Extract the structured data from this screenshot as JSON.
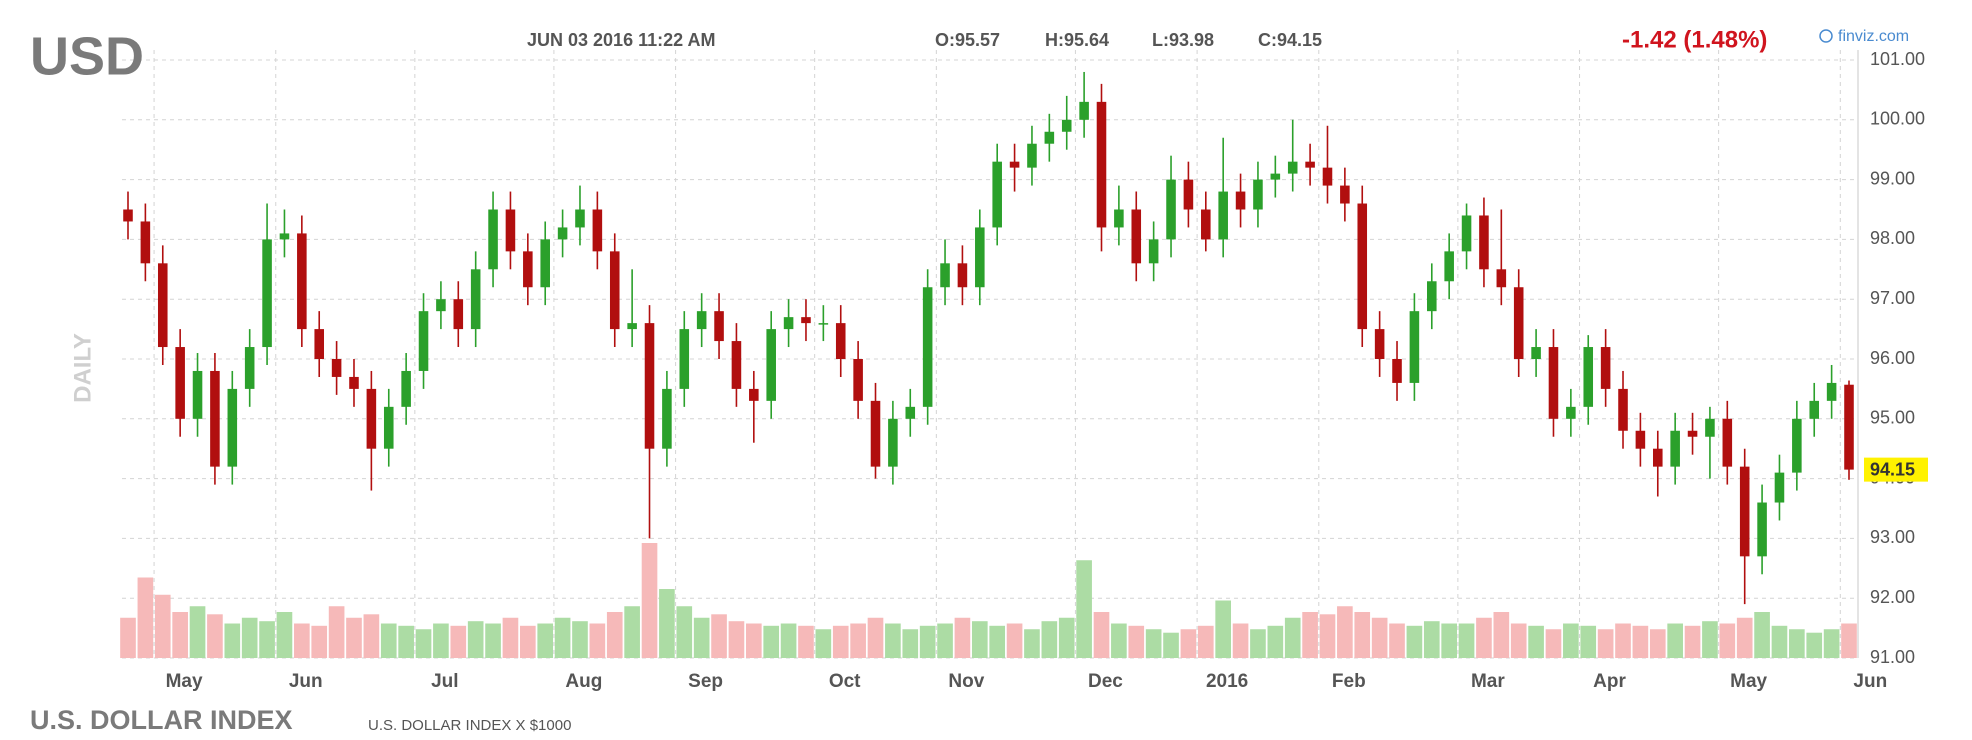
{
  "chart_data": {
    "type": "candlestick",
    "symbol": "USD",
    "timestamp": "JUN 03 2016 11:22 AM",
    "quote_open": "O:95.57",
    "quote_high": "H:95.64",
    "quote_low": "L:93.98",
    "quote_close": "C:94.15",
    "change": "-1.42 (1.48%)",
    "source": "finviz.com",
    "period_label": "DAILY",
    "title": "U.S. DOLLAR INDEX",
    "subtitle": "U.S. DOLLAR INDEX X $1000",
    "last_price": 94.15,
    "up_color": "#2ba02b",
    "down_color": "#b10f0f",
    "volume_up_color": "#acdca4",
    "volume_down_color": "#f6b9b9",
    "grid": true,
    "ylim": [
      91,
      101
    ],
    "yticks": [
      {
        "value": 91,
        "label": "91.00"
      },
      {
        "value": 92,
        "label": "92.00"
      },
      {
        "value": 93,
        "label": "93.00"
      },
      {
        "value": 94,
        "label": "94.00"
      },
      {
        "value": 95,
        "label": "95.00"
      },
      {
        "value": 96,
        "label": "96.00"
      },
      {
        "value": 97,
        "label": "97.00"
      },
      {
        "value": 98,
        "label": "98.00"
      },
      {
        "value": 99,
        "label": "99.00"
      },
      {
        "value": 100,
        "label": "100.00"
      },
      {
        "value": 101,
        "label": "101.00"
      }
    ],
    "categories": [
      null,
      null,
      "May",
      null,
      null,
      null,
      null,
      null,
      null,
      "Jun",
      null,
      null,
      null,
      null,
      null,
      null,
      null,
      "Jul",
      null,
      null,
      null,
      null,
      null,
      null,
      null,
      "Aug",
      null,
      null,
      null,
      null,
      null,
      null,
      "Sep",
      null,
      null,
      null,
      null,
      null,
      null,
      null,
      "Oct",
      null,
      null,
      null,
      null,
      null,
      null,
      "Nov",
      null,
      null,
      null,
      null,
      null,
      null,
      null,
      "Dec",
      null,
      null,
      null,
      null,
      null,
      null,
      "2016",
      null,
      null,
      null,
      null,
      null,
      null,
      "Feb",
      null,
      null,
      null,
      null,
      null,
      null,
      null,
      "Mar",
      null,
      null,
      null,
      null,
      null,
      null,
      "Apr",
      null,
      null,
      null,
      null,
      null,
      null,
      null,
      "May",
      null,
      null,
      null,
      null,
      null,
      null,
      "Jun"
    ],
    "open": [
      98.5,
      98.3,
      97.6,
      96.2,
      95.0,
      95.8,
      94.2,
      95.5,
      96.2,
      98.0,
      98.1,
      96.5,
      96.0,
      95.7,
      95.5,
      94.5,
      95.2,
      95.8,
      96.8,
      97.0,
      96.5,
      97.5,
      98.5,
      97.8,
      97.2,
      98.0,
      98.2,
      98.5,
      97.8,
      96.5,
      96.6,
      94.5,
      95.5,
      96.5,
      96.8,
      96.3,
      95.5,
      95.3,
      96.5,
      96.7,
      96.6,
      96.6,
      96.0,
      95.3,
      94.2,
      95.0,
      95.2,
      97.2,
      97.6,
      97.2,
      98.2,
      99.3,
      99.2,
      99.6,
      99.8,
      100.0,
      100.3,
      98.2,
      98.5,
      97.6,
      98.0,
      99.0,
      98.5,
      98.0,
      98.8,
      98.5,
      99.0,
      99.1,
      99.3,
      99.2,
      98.9,
      98.6,
      96.5,
      96.0,
      95.6,
      96.8,
      97.3,
      97.8,
      98.4,
      97.5,
      97.2,
      96.0,
      96.2,
      95.0,
      95.2,
      96.2,
      95.5,
      94.8,
      94.5,
      94.2,
      94.8,
      94.7,
      95.0,
      94.2,
      92.7,
      93.6,
      94.1,
      95.0,
      95.3,
      95.57
    ],
    "high": [
      98.8,
      98.6,
      97.9,
      96.5,
      96.1,
      96.1,
      95.8,
      96.5,
      98.6,
      98.5,
      98.4,
      96.8,
      96.3,
      96.0,
      95.8,
      95.5,
      96.1,
      97.1,
      97.3,
      97.3,
      97.8,
      98.8,
      98.8,
      98.1,
      98.3,
      98.5,
      98.9,
      98.8,
      98.1,
      97.5,
      96.9,
      95.8,
      96.8,
      97.1,
      97.1,
      96.6,
      95.8,
      96.8,
      97.0,
      97.0,
      96.9,
      96.9,
      96.3,
      95.6,
      95.3,
      95.5,
      97.5,
      98.0,
      97.9,
      98.5,
      99.6,
      99.6,
      99.9,
      100.1,
      100.4,
      100.8,
      100.6,
      98.9,
      98.8,
      98.3,
      99.4,
      99.3,
      98.8,
      99.7,
      99.1,
      99.3,
      99.4,
      100.0,
      99.6,
      99.9,
      99.2,
      98.9,
      96.8,
      96.3,
      97.1,
      97.6,
      98.1,
      98.6,
      98.7,
      98.5,
      97.5,
      96.5,
      96.5,
      95.5,
      96.4,
      96.5,
      95.8,
      95.1,
      94.8,
      95.1,
      95.1,
      95.2,
      95.3,
      94.5,
      93.9,
      94.4,
      95.3,
      95.6,
      95.9,
      95.64
    ],
    "low": [
      98.0,
      97.3,
      95.9,
      94.7,
      94.7,
      93.9,
      93.9,
      95.2,
      95.9,
      97.7,
      96.2,
      95.7,
      95.4,
      95.2,
      93.8,
      94.2,
      94.9,
      95.5,
      96.5,
      96.2,
      96.2,
      97.2,
      97.5,
      96.9,
      96.9,
      97.7,
      97.9,
      97.5,
      96.2,
      96.2,
      93.0,
      94.2,
      95.2,
      96.2,
      96.0,
      95.2,
      94.6,
      95.0,
      96.2,
      96.3,
      96.3,
      95.7,
      95.0,
      94.0,
      93.9,
      94.7,
      94.9,
      96.9,
      96.9,
      96.9,
      97.9,
      98.8,
      98.9,
      99.3,
      99.5,
      99.7,
      97.8,
      97.9,
      97.3,
      97.3,
      97.7,
      98.2,
      97.8,
      97.7,
      98.2,
      98.2,
      98.7,
      98.8,
      98.9,
      98.6,
      98.3,
      96.2,
      95.7,
      95.3,
      95.3,
      96.5,
      97.0,
      97.5,
      97.2,
      96.9,
      95.7,
      95.7,
      94.7,
      94.7,
      94.9,
      95.2,
      94.5,
      94.2,
      93.7,
      93.9,
      94.4,
      94.0,
      93.9,
      91.9,
      92.4,
      93.3,
      93.8,
      94.7,
      95.0,
      93.98
    ],
    "close": [
      98.3,
      97.6,
      96.2,
      95.0,
      95.8,
      94.2,
      95.5,
      96.2,
      98.0,
      98.1,
      96.5,
      96.0,
      95.7,
      95.5,
      94.5,
      95.2,
      95.8,
      96.8,
      97.0,
      96.5,
      97.5,
      98.5,
      97.8,
      97.2,
      98.0,
      98.2,
      98.5,
      97.8,
      96.5,
      96.6,
      94.5,
      95.5,
      96.5,
      96.8,
      96.3,
      95.5,
      95.3,
      96.5,
      96.7,
      96.6,
      96.6,
      96.0,
      95.3,
      94.2,
      95.0,
      95.2,
      97.2,
      97.6,
      97.2,
      98.2,
      99.3,
      99.2,
      99.6,
      99.8,
      100.0,
      100.3,
      98.2,
      98.5,
      97.6,
      98.0,
      99.0,
      98.5,
      98.0,
      98.8,
      98.5,
      99.0,
      99.1,
      99.3,
      99.2,
      98.9,
      98.6,
      96.5,
      96.0,
      95.6,
      96.8,
      97.3,
      97.8,
      98.4,
      97.5,
      97.2,
      96.0,
      96.2,
      95.0,
      95.2,
      96.2,
      95.5,
      94.8,
      94.5,
      94.2,
      94.8,
      94.7,
      95.0,
      94.2,
      92.7,
      93.6,
      94.1,
      95.0,
      95.3,
      95.6,
      94.15
    ],
    "volume": [
      35,
      70,
      55,
      40,
      45,
      38,
      30,
      35,
      32,
      40,
      30,
      28,
      45,
      35,
      38,
      30,
      28,
      25,
      30,
      28,
      32,
      30,
      35,
      28,
      30,
      35,
      32,
      30,
      40,
      45,
      100,
      60,
      45,
      35,
      38,
      32,
      30,
      28,
      30,
      28,
      25,
      28,
      30,
      35,
      30,
      25,
      28,
      30,
      35,
      32,
      28,
      30,
      25,
      32,
      35,
      85,
      40,
      30,
      28,
      25,
      22,
      25,
      28,
      50,
      30,
      25,
      28,
      35,
      40,
      38,
      45,
      40,
      35,
      30,
      28,
      32,
      30,
      30,
      35,
      40,
      30,
      28,
      25,
      30,
      28,
      25,
      30,
      28,
      25,
      30,
      28,
      32,
      30,
      35,
      40,
      28,
      25,
      22,
      25,
      30
    ]
  }
}
